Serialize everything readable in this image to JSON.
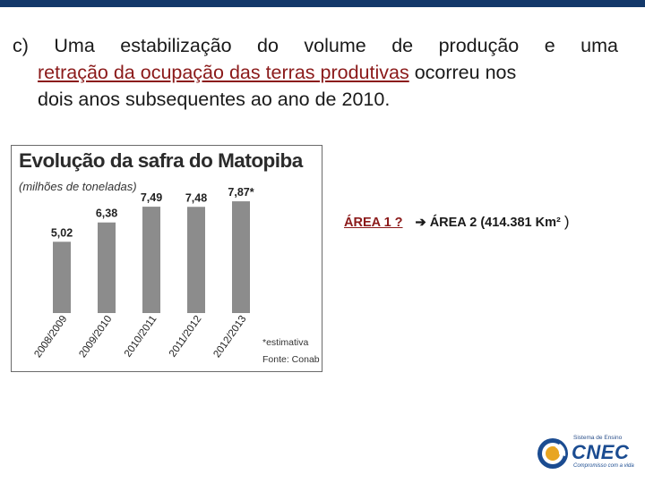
{
  "paragraph": {
    "line1": "c) Uma estabilização do volume de produção e uma",
    "underlined": "retração da ocupação das terras produtivas",
    "line2_rest": " ocorreu nos",
    "line3": "dois anos subsequentes ao ano de 2010."
  },
  "area_note": {
    "area1": "ÁREA 1 ?",
    "arrow": "➔",
    "area2": "ÁREA 2 (414.381 Km²",
    "close_paren": ")"
  },
  "chart_data": {
    "type": "bar",
    "title": "Evolução da safra do Matopiba",
    "subtitle": "(milhões de toneladas)",
    "categories": [
      "2008/2009",
      "2009/2010",
      "2010/2011",
      "2011/2012",
      "2012/2013"
    ],
    "values": [
      5.02,
      6.38,
      7.49,
      7.48,
      7.87
    ],
    "value_labels": [
      "5,02",
      "6,38",
      "7,49",
      "7,48",
      "7,87*"
    ],
    "footnote": "*estimativa",
    "source": "Fonte: Conab",
    "bar_color": "#8c8c8c",
    "ylim": [
      0,
      8
    ]
  },
  "logo": {
    "system_label": "Sistema de Ensino",
    "brand": "CNEC",
    "tagline": "Compromisso com a vida"
  },
  "colors": {
    "top_bar": "#13386a",
    "underline_text": "#8b1a1a",
    "brand_blue": "#1b4c91"
  }
}
